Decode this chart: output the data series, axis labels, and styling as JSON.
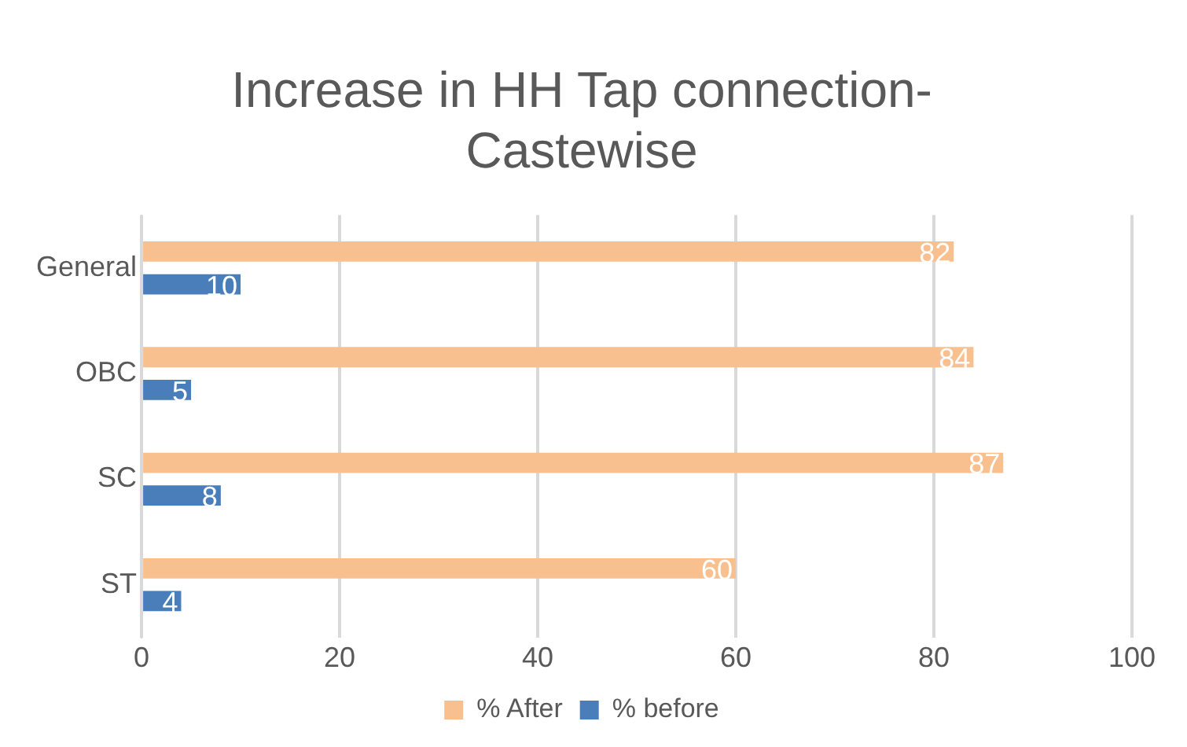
{
  "chart_data": {
    "type": "bar",
    "orientation": "horizontal",
    "title": "Increase in HH Tap connection-Castewise",
    "categories": [
      "General",
      "OBC",
      "SC",
      "ST"
    ],
    "series": [
      {
        "name": "% After",
        "color": "#f9c08f",
        "values": [
          82,
          84,
          87,
          60
        ]
      },
      {
        "name": "% before",
        "color": "#4a7ebb",
        "values": [
          10,
          5,
          8,
          4
        ]
      }
    ],
    "xlim": [
      0,
      100
    ],
    "xticks": [
      0,
      20,
      40,
      60,
      80,
      100
    ],
    "grid": "x",
    "legend": "bottom",
    "data_labels": true
  }
}
